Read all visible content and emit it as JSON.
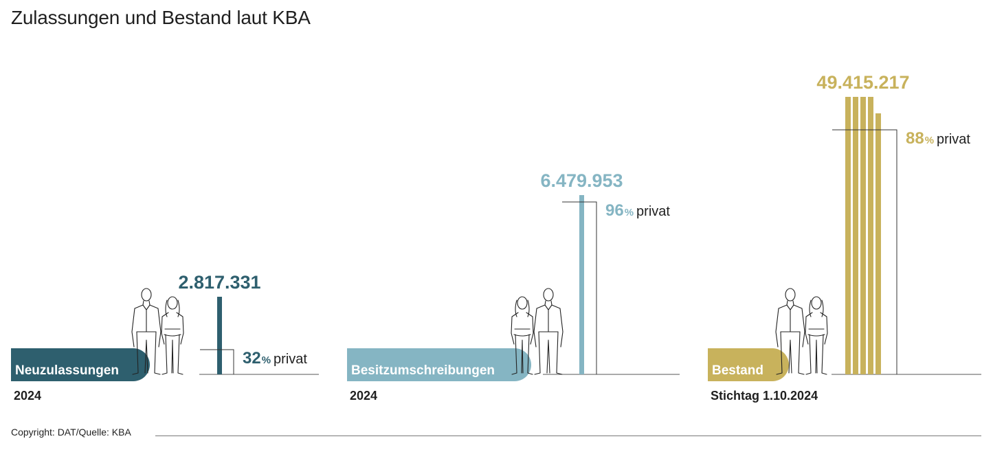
{
  "title": "Zulassungen und Bestand laut KBA",
  "copyright": "Copyright: DAT/Quelle: KBA",
  "colors": {
    "neuzulassungen": "#2e5f6e",
    "besitzumschreibungen": "#85b5c3",
    "bestand": "#c8b25c"
  },
  "icons": [
    "person-couple-icon"
  ],
  "chart_data": {
    "type": "bar",
    "title": "Zulassungen und Bestand laut KBA",
    "categories": [
      "Neuzulassungen",
      "Besitzumschreibungen",
      "Bestand"
    ],
    "series": [
      {
        "values": [
          2817331,
          6479953,
          49415217
        ],
        "value_labels": [
          "2.817.331",
          "6.479.953",
          "49.415.217"
        ]
      }
    ],
    "private_share_percent": [
      32,
      96,
      88
    ],
    "private_share_labels": [
      {
        "num": "32",
        "sign": "%",
        "word": "privat"
      },
      {
        "num": "96",
        "sign": "%",
        "word": "privat"
      },
      {
        "num": "88",
        "sign": "%",
        "word": "privat"
      }
    ],
    "sublabels": [
      "2024",
      "2024",
      "Stichtag 1.10.2024"
    ],
    "grid": false,
    "legend": "none"
  }
}
